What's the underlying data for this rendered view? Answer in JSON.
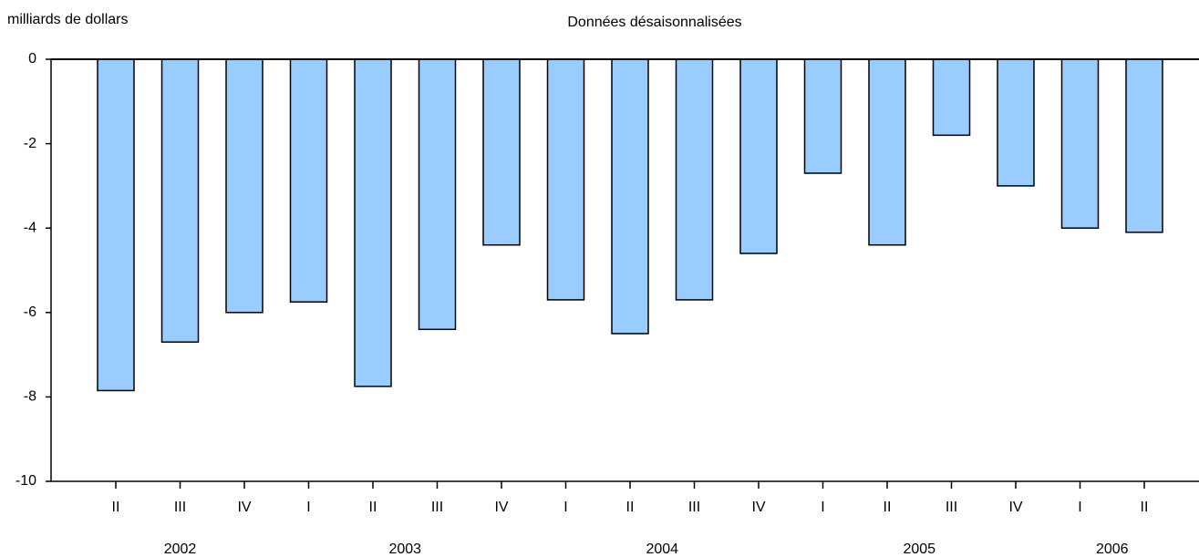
{
  "chart_data": {
    "type": "bar",
    "title": "Données désaisonnalisées",
    "y_label": "milliards de dollars",
    "categories": [
      "II",
      "III",
      "IV",
      "I",
      "II",
      "III",
      "IV",
      "I",
      "II",
      "III",
      "IV",
      "I",
      "II",
      "III",
      "IV",
      "I",
      "II"
    ],
    "groups": [
      "2002",
      "2003",
      "2004",
      "2005",
      "2006"
    ],
    "values": [
      -7.85,
      -6.7,
      -6.0,
      -5.75,
      -7.75,
      -6.4,
      -4.4,
      -5.7,
      -6.5,
      -5.7,
      -4.6,
      -2.7,
      -4.4,
      -1.8,
      -3.0,
      -4.0,
      -4.1
    ],
    "color": "#99ccff",
    "ylim": [
      -10,
      0
    ],
    "yticks": [
      0,
      -2,
      -4,
      -6,
      -8,
      -10
    ]
  }
}
